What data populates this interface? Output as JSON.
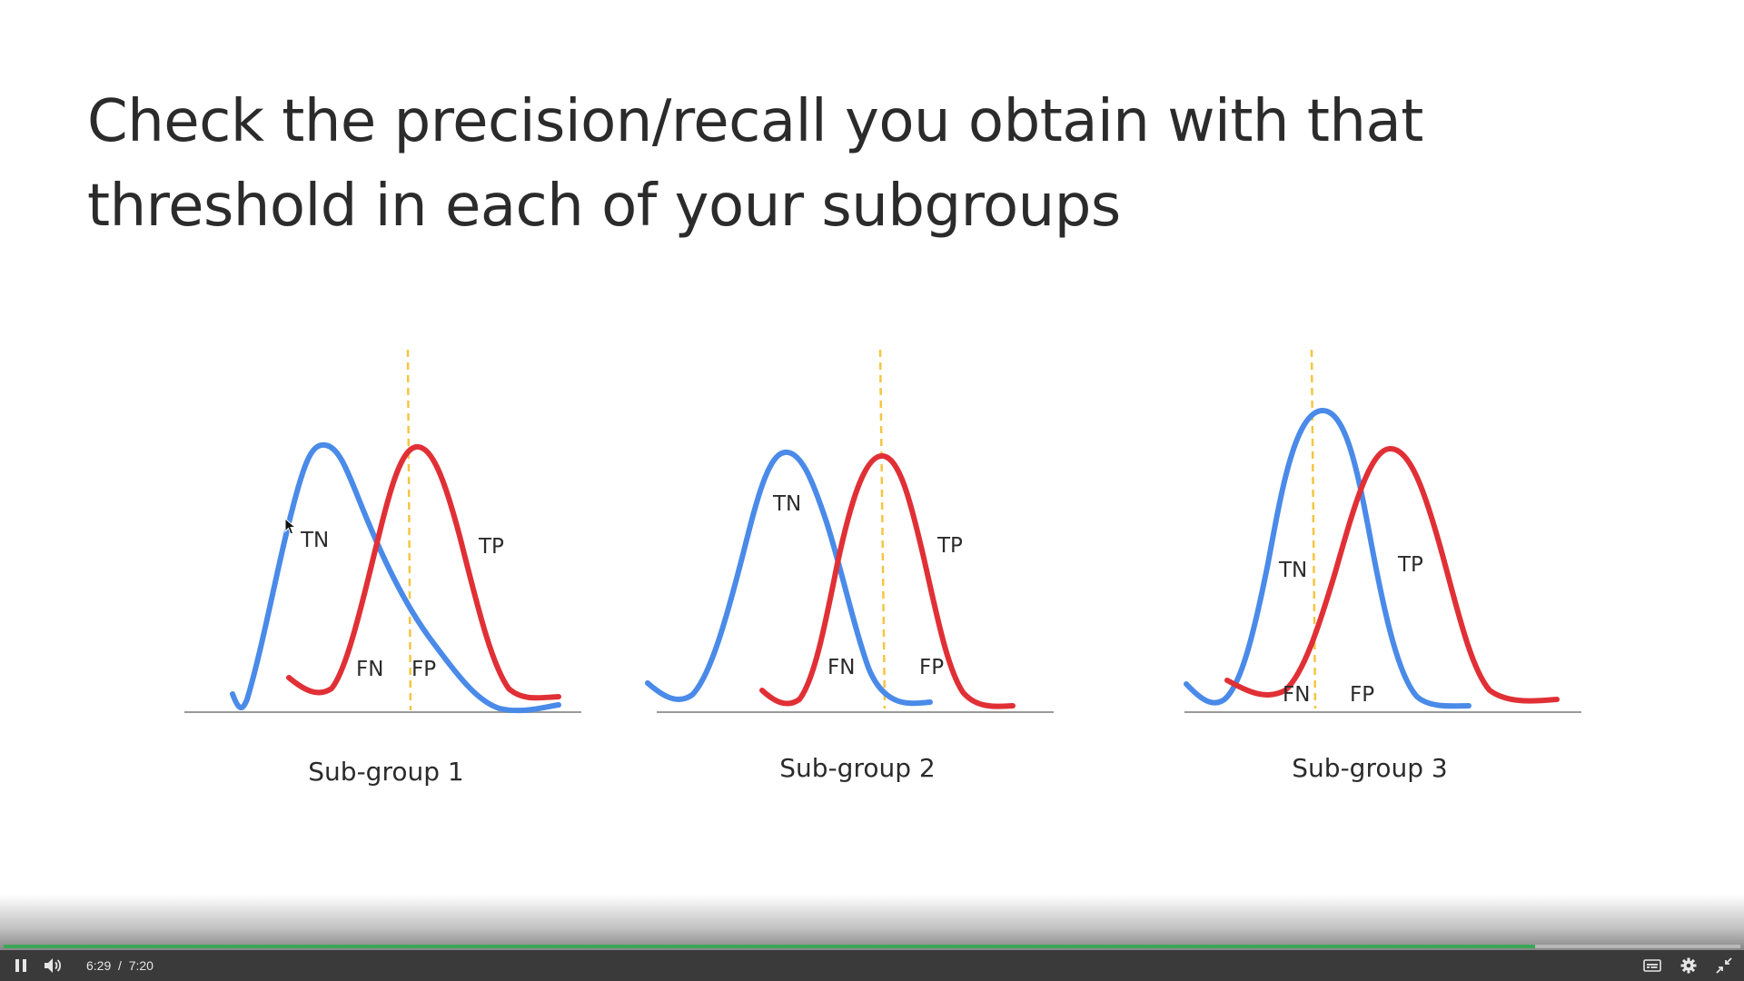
{
  "slide": {
    "title": "Check the precision/recall you obtain with that threshold in each of your subgroups"
  },
  "charts": [
    {
      "caption": "Sub-group 1",
      "labels": {
        "tn": "TN",
        "fn": "FN",
        "fp": "FP",
        "tp": "TP"
      }
    },
    {
      "caption": "Sub-group 2",
      "labels": {
        "tn": "TN",
        "fn": "FN",
        "fp": "FP",
        "tp": "TP"
      }
    },
    {
      "caption": "Sub-group 3",
      "labels": {
        "tn": "TN",
        "fn": "FN",
        "fp": "FP",
        "tp": "TP"
      }
    }
  ],
  "colors": {
    "negative_curve": "#4a8ae8",
    "positive_curve": "#e03036",
    "threshold_line": "#f5c542",
    "progress": "#3aa757"
  },
  "player": {
    "current_time": "6:29",
    "separator": "/",
    "duration": "7:20",
    "progress": 0.882,
    "icons": [
      "pause-icon",
      "volume-icon",
      "captions-icon",
      "settings-gear-icon",
      "exit-fullscreen-icon"
    ]
  }
}
